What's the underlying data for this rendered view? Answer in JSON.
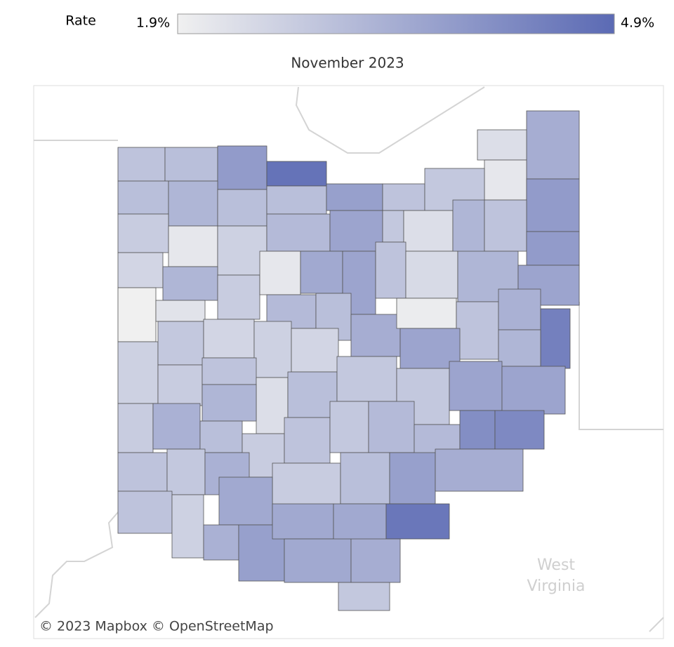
{
  "legend": {
    "title": "Rate",
    "colors": [
      "#f0f0f0",
      "#5b6ab4"
    ],
    "ticks": [
      {
        "value": 1.9,
        "label": "1.9%"
      },
      {
        "value": 4.9,
        "label": "4.9%"
      }
    ]
  },
  "map": {
    "title": "November 2023",
    "attribution": "© 2023 Mapbox © OpenStreetMap",
    "place_labels": [
      "West",
      "Virginia"
    ],
    "values": [
      2.9,
      3.0,
      3.8,
      4.7,
      3.4,
      2.3,
      2.1,
      3.0,
      3.2,
      3.0,
      3.0,
      3.7,
      2.9,
      2.8,
      3.8,
      2.7,
      2.1,
      2.6,
      3.1,
      3.6,
      2.8,
      2.3,
      3.2,
      2.9,
      3.8,
      2.5,
      3.2,
      2.7,
      2.1,
      3.5,
      3.6,
      2.9,
      2.4,
      3.2,
      3.6,
      1.9,
      2.2,
      3.1,
      3.0,
      3.4,
      2.0,
      2.9,
      3.3,
      4.4,
      2.6,
      2.8,
      2.5,
      2.6,
      2.5,
      3.6,
      3.2,
      2.7,
      2.9,
      2.3,
      3.0,
      2.8,
      2.8,
      3.6,
      3.6,
      3.2,
      2.7,
      3.3,
      3.0,
      2.7,
      2.9,
      2.8,
      3.1,
      3.1,
      4.1,
      4.2,
      2.9,
      2.8,
      3.3,
      2.7,
      3.5,
      3.0,
      3.7,
      3.4,
      2.9,
      2.6,
      3.3,
      3.7,
      3.5,
      3.5,
      4.6,
      3.5,
      3.4,
      2.8
    ]
  }
}
